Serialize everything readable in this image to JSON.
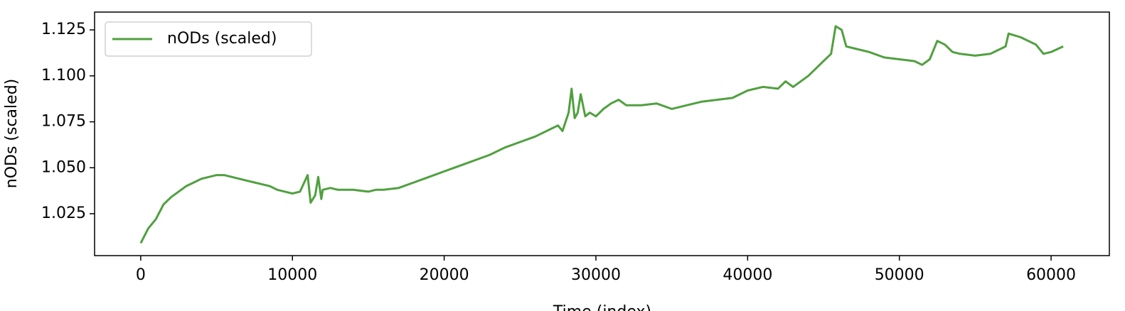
{
  "chart_data": {
    "type": "line",
    "xlabel": "Time (index)",
    "ylabel": "nODs (scaled)",
    "x": [
      0,
      500,
      1000,
      1500,
      2000,
      2500,
      3000,
      3500,
      4000,
      4500,
      5000,
      5500,
      6000,
      6500,
      7000,
      7500,
      8000,
      8500,
      9000,
      9500,
      10000,
      10500,
      11000,
      11200,
      11500,
      11700,
      11900,
      12000,
      12500,
      13000,
      14000,
      15000,
      15500,
      16000,
      17000,
      18000,
      19000,
      20000,
      21000,
      22000,
      23000,
      24000,
      25000,
      26000,
      27000,
      27500,
      27800,
      28200,
      28400,
      28600,
      28800,
      29000,
      29300,
      29600,
      30000,
      30500,
      31000,
      31500,
      32000,
      33000,
      34000,
      35000,
      36000,
      37000,
      38000,
      39000,
      40000,
      41000,
      42000,
      42500,
      43000,
      44000,
      45000,
      45500,
      45800,
      46200,
      46500,
      47000,
      48000,
      49000,
      50000,
      51000,
      51500,
      52000,
      52500,
      53000,
      53500,
      54000,
      55000,
      56000,
      57000,
      57200,
      58000,
      59000,
      59500,
      60000,
      60800
    ],
    "series": [
      {
        "name": "nODs (scaled)",
        "color": "#50a03f",
        "values": [
          1.009,
          1.017,
          1.022,
          1.03,
          1.034,
          1.037,
          1.04,
          1.042,
          1.044,
          1.045,
          1.046,
          1.046,
          1.045,
          1.044,
          1.043,
          1.042,
          1.041,
          1.04,
          1.038,
          1.037,
          1.036,
          1.037,
          1.046,
          1.031,
          1.035,
          1.045,
          1.033,
          1.038,
          1.039,
          1.038,
          1.038,
          1.037,
          1.038,
          1.038,
          1.039,
          1.042,
          1.045,
          1.048,
          1.051,
          1.054,
          1.057,
          1.061,
          1.064,
          1.067,
          1.071,
          1.073,
          1.07,
          1.08,
          1.093,
          1.077,
          1.08,
          1.09,
          1.078,
          1.08,
          1.078,
          1.082,
          1.085,
          1.087,
          1.084,
          1.084,
          1.085,
          1.082,
          1.084,
          1.086,
          1.087,
          1.088,
          1.092,
          1.094,
          1.093,
          1.097,
          1.094,
          1.1,
          1.108,
          1.112,
          1.127,
          1.125,
          1.116,
          1.115,
          1.113,
          1.11,
          1.109,
          1.108,
          1.106,
          1.109,
          1.119,
          1.117,
          1.113,
          1.112,
          1.111,
          1.112,
          1.116,
          1.123,
          1.121,
          1.117,
          1.112,
          1.113,
          1.116
        ]
      }
    ],
    "xlim": [
      -3040,
      63840
    ],
    "ylim": [
      1.0022,
      1.1347
    ],
    "xticks": [
      0,
      10000,
      20000,
      30000,
      40000,
      50000,
      60000
    ],
    "yticks": [
      1.025,
      {
        "value": 1.05,
        "label": "1.050"
      },
      1.075,
      {
        "value": 1.1,
        "label": "1.100"
      },
      1.125
    ],
    "legend": "upper left",
    "grid": false
  }
}
